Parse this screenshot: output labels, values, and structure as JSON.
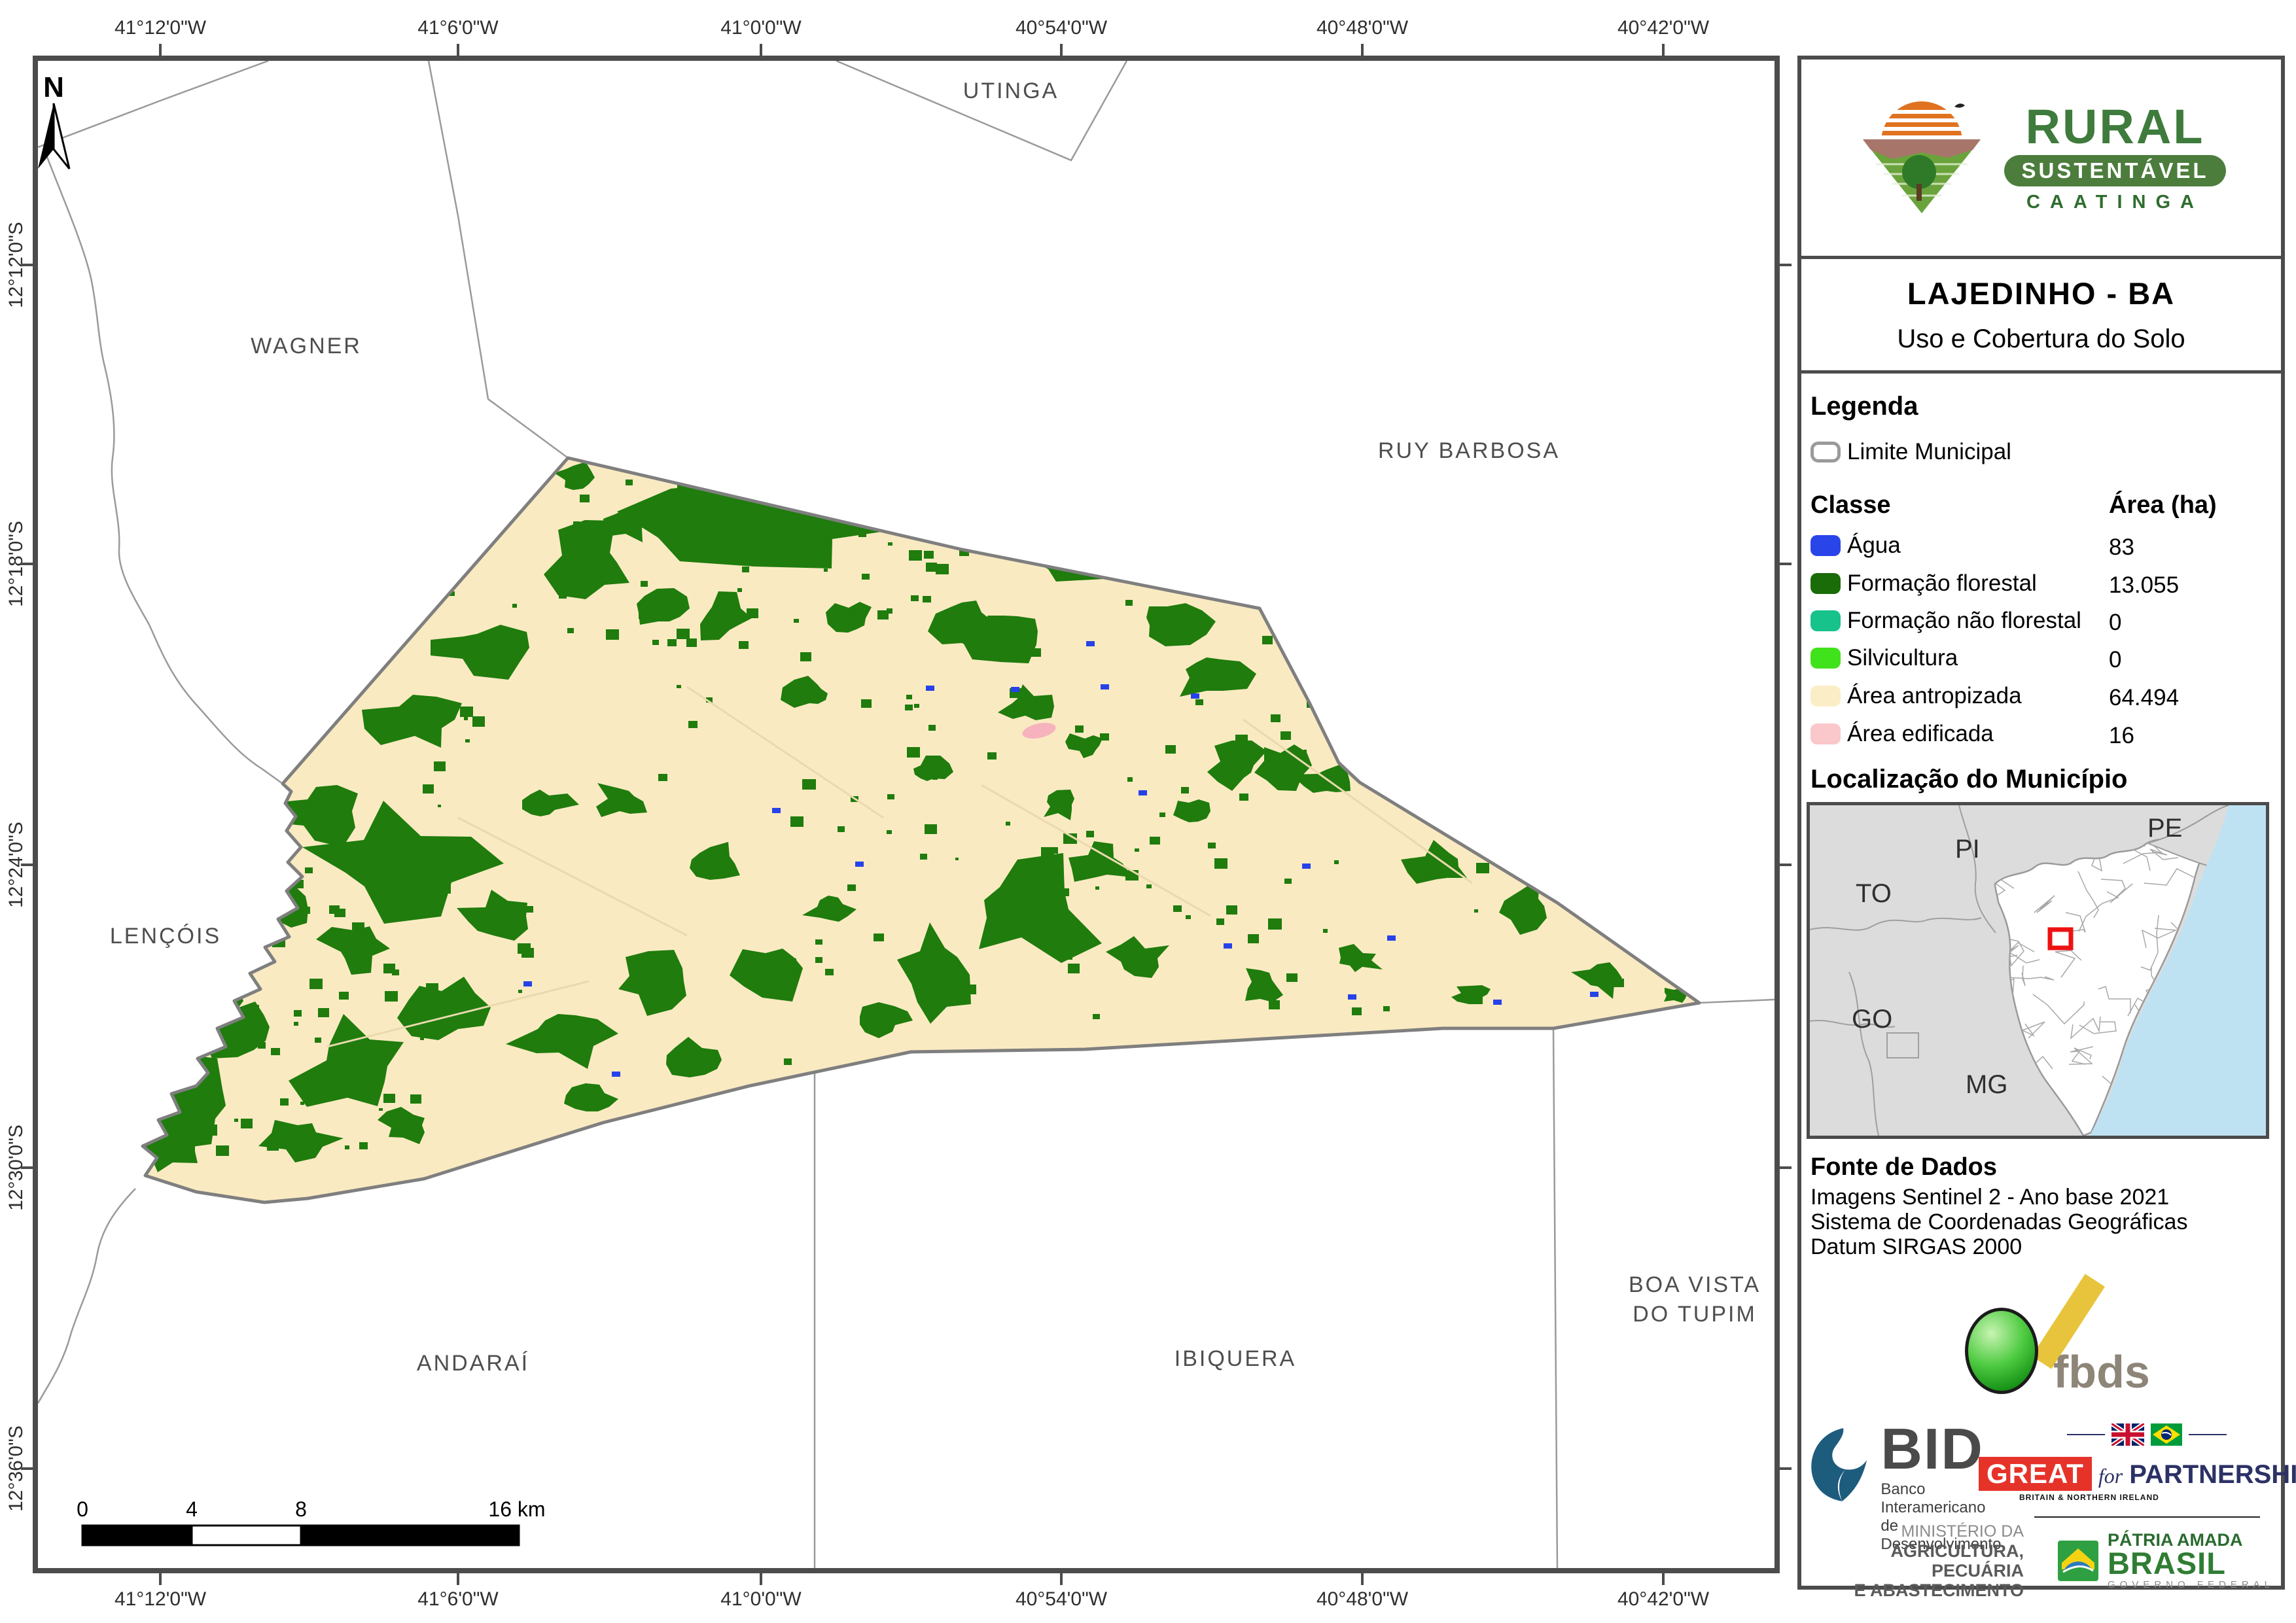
{
  "map": {
    "north_label": "N",
    "coords_x": [
      "41°12'0\"W",
      "41°6'0\"W",
      "41°0'0\"W",
      "40°54'0\"W",
      "40°48'0\"W",
      "40°42'0\"W"
    ],
    "coords_y": [
      "12°12'0\"S",
      "12°18'0\"S",
      "12°24'0\"S",
      "12°30'0\"S",
      "12°36'0\"S"
    ],
    "labels": {
      "utinga": "UTINGA",
      "wagner": "WAGNER",
      "ruy_barbosa": "RUY BARBOSA",
      "lencois": "LENÇÓIS",
      "andarai": "ANDARAÍ",
      "ibiquera": "IBIQUERA",
      "boa_vista_1": "BOA VISTA",
      "boa_vista_2": "DO TUPIM"
    },
    "scalebar": {
      "t0": "0",
      "t4": "4",
      "t8": "8",
      "t16": "16 km"
    },
    "colors": {
      "frame": "#4c4c4c",
      "municipality_fill": "#faeac2",
      "forest": "#1f7c0d",
      "water": "#2742e8",
      "built": "#f6b3bd",
      "boundary": "#7f7f7f",
      "neighbor_line": "#9a9a9a"
    }
  },
  "sidebar": {
    "logo": {
      "line1": "RURAL",
      "line2": "SUSTENTÁVEL",
      "line3": "CAATINGA"
    },
    "title": "LAJEDINHO - BA",
    "subtitle": "Uso e Cobertura do Solo",
    "legend": {
      "heading": "Legenda",
      "limite_label": "Limite Municipal",
      "col_class": "Classe",
      "col_area": "Área (ha)",
      "rows": [
        {
          "label": "Água",
          "area": "83",
          "color": "#2945ea"
        },
        {
          "label": "Formação florestal",
          "area": "13.055",
          "color": "#1a6c08"
        },
        {
          "label": "Formação não florestal",
          "area": "0",
          "color": "#17c28b"
        },
        {
          "label": "Silvicultura",
          "area": "0",
          "color": "#40e21b"
        },
        {
          "label": "Área antropizada",
          "area": "64.494",
          "color": "#fbedc6"
        },
        {
          "label": "Área edificada",
          "area": "16",
          "color": "#fac7ca"
        }
      ]
    },
    "location": {
      "heading": "Localização do Município",
      "states": [
        "PE",
        "PI",
        "TO",
        "GO",
        "MG"
      ],
      "ocean_color": "#bfe2f3",
      "marker_color": "#ee1111"
    },
    "source": {
      "heading": "Fonte de Dados",
      "lines": [
        "Imagens Sentinel 2 - Ano base 2021",
        "Sistema de Coordenadas Geográficas",
        "Datum SIRGAS 2000"
      ]
    },
    "logos": {
      "fbds": "fbds",
      "bid": {
        "acronym": "BID",
        "line1": "Banco Interamericano",
        "line2": "de Desenvolvimento"
      },
      "great": {
        "word": "GREAT",
        "for_word": "for",
        "partnership": "PARTNERSHIP",
        "caption": "BRITAIN & NORTHERN IRELAND"
      },
      "ministry": {
        "line1": "MINISTÉRIO DA",
        "line2": "AGRICULTURA, PECUÁRIA",
        "line3": "E ABASTECIMENTO"
      },
      "brasil": {
        "line1": "PÁTRIA AMADA",
        "line2": "BRASIL",
        "line3": "GOVERNO FEDERAL"
      }
    }
  }
}
